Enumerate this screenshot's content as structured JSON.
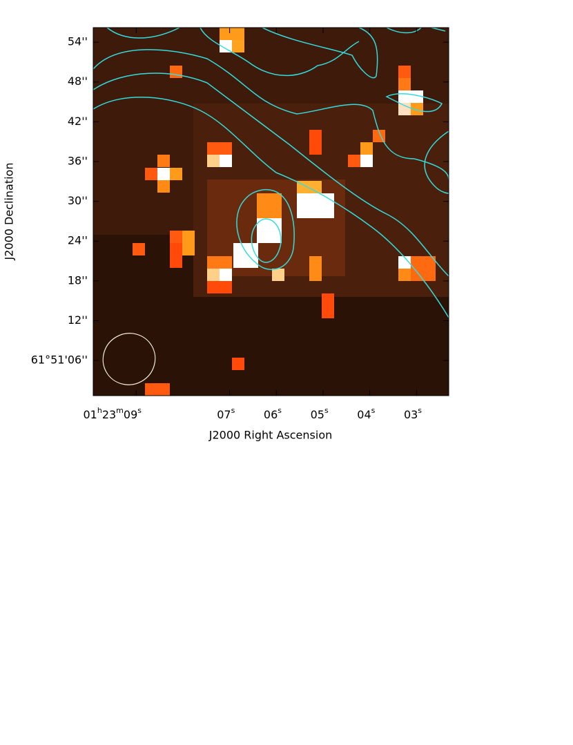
{
  "chart_data": {
    "type": "image",
    "x_label": "J2000 Right Ascension",
    "y_label": "J2000 Declination",
    "xlim": [
      9.92,
      2.31
    ],
    "ylim": [
      0.7,
      56.2
    ],
    "xticks": [
      {
        "value": 9,
        "label": [
          "01",
          "h",
          "23",
          "m",
          "09",
          "s"
        ]
      },
      {
        "value": 7,
        "label": [
          "07",
          "s"
        ]
      },
      {
        "value": 6,
        "label": [
          "06",
          "s"
        ]
      },
      {
        "value": 5,
        "label": [
          "05",
          "s"
        ]
      },
      {
        "value": 4,
        "label": [
          "04",
          "s"
        ]
      },
      {
        "value": 3,
        "label": [
          "03",
          "s"
        ]
      }
    ],
    "yticks": [
      {
        "value": 6,
        "label": "61°51'06''"
      },
      {
        "value": 12,
        "label": "12''"
      },
      {
        "value": 18,
        "label": "18''"
      },
      {
        "value": 24,
        "label": "24''"
      },
      {
        "value": 30,
        "label": "30''"
      },
      {
        "value": 36,
        "label": "36''"
      },
      {
        "value": 42,
        "label": "42''"
      },
      {
        "value": 48,
        "label": "48''"
      },
      {
        "value": 54,
        "label": "54''"
      }
    ]
  }
}
